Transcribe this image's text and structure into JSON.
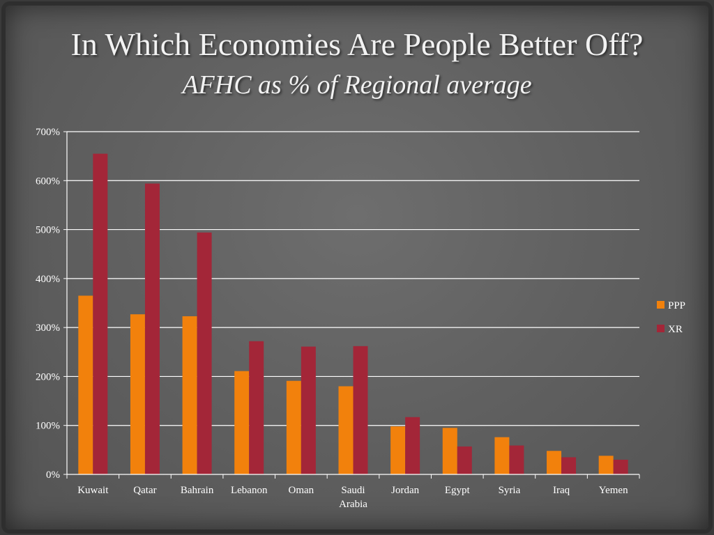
{
  "slide": {
    "title": "In Which Economies Are People Better Off?",
    "subtitle": "AFHC as % of Regional average"
  },
  "chart_data": {
    "type": "bar",
    "title": "",
    "xlabel": "",
    "ylabel": "",
    "categories": [
      "Kuwait",
      "Qatar",
      "Bahrain",
      "Lebanon",
      "Oman",
      "Saudi Arabia",
      "Jordan",
      "Egypt",
      "Syria",
      "Iraq",
      "Yemen"
    ],
    "category_lines": [
      [
        "Kuwait"
      ],
      [
        "Qatar"
      ],
      [
        "Bahrain"
      ],
      [
        "Lebanon"
      ],
      [
        "Oman"
      ],
      [
        "Saudi",
        "Arabia"
      ],
      [
        "Jordan"
      ],
      [
        "Egypt"
      ],
      [
        "Syria"
      ],
      [
        "Iraq"
      ],
      [
        "Yemen"
      ]
    ],
    "series": [
      {
        "name": "PPP",
        "color": "#f2810c",
        "values": [
          365,
          327,
          323,
          211,
          191,
          180,
          98,
          95,
          76,
          48,
          38
        ]
      },
      {
        "name": "XR",
        "color": "#a32638",
        "values": [
          655,
          594,
          494,
          272,
          261,
          262,
          117,
          57,
          59,
          35,
          30
        ]
      }
    ],
    "ylim": [
      0,
      700
    ],
    "yticks": [
      0,
      100,
      200,
      300,
      400,
      500,
      600,
      700
    ],
    "ytick_labels": [
      "0%",
      "100%",
      "200%",
      "300%",
      "400%",
      "500%",
      "600%",
      "700%"
    ],
    "grid": true,
    "legend_position": "right"
  }
}
